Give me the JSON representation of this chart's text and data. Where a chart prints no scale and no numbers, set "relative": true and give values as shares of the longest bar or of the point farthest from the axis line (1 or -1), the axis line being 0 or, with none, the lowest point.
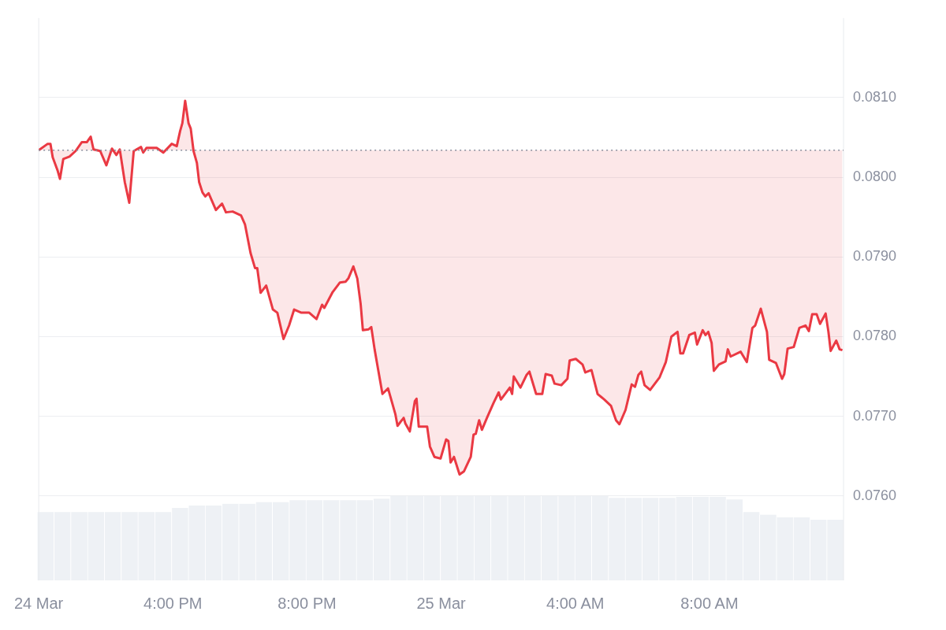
{
  "chart_data": [
    {
      "type": "line",
      "xlim": [
        "--03-24T12:00",
        "--03-25T12:00"
      ],
      "xticks": [
        {
          "value": "--03-24T12:00",
          "label": "24 Mar"
        },
        {
          "value": "--03-24T16:00",
          "label": "4:00 PM"
        },
        {
          "value": "--03-24T20:00",
          "label": "8:00 PM"
        },
        {
          "value": "--03-25T00:00",
          "label": "25 Mar"
        },
        {
          "value": "--03-25T04:00",
          "label": "4:00 AM"
        },
        {
          "value": "--03-25T08:00",
          "label": "8:00 AM"
        }
      ],
      "ylim": [
        0.07494,
        0.082
      ],
      "yticks": [
        {
          "value": 0.076,
          "label": "0.0760"
        },
        {
          "value": 0.077,
          "label": "0.0770"
        },
        {
          "value": 0.078,
          "label": "0.0780"
        },
        {
          "value": 0.079,
          "label": "0.0790"
        },
        {
          "value": 0.08,
          "label": "0.0800"
        },
        {
          "value": 0.081,
          "label": "0.0810"
        }
      ],
      "grid": "y",
      "legend": false,
      "marker": "none",
      "line_style": "solid",
      "ref_lines": [
        {
          "axis": "y",
          "value": 0.08034,
          "color": "#8a8f9e",
          "line_style": "dotted"
        }
      ],
      "series": [
        {
          "color": "#ea3943",
          "x": [
            "--03-24T12:00",
            "--03-24T12:16",
            "--03-24T12:21",
            "--03-24T12:25",
            "--03-24T12:34",
            "--03-24T12:38",
            "--03-24T12:44",
            "--03-24T12:55",
            "--03-24T13:06",
            "--03-24T13:17",
            "--03-24T13:26",
            "--03-24T13:33",
            "--03-24T13:38",
            "--03-24T13:50",
            "--03-24T14:01",
            "--03-24T14:11",
            "--03-24T14:19",
            "--03-24T14:25",
            "--03-24T14:34",
            "--03-24T14:42",
            "--03-24T14:50",
            "--03-24T15:03",
            "--03-24T15:07",
            "--03-24T15:13",
            "--03-24T15:31",
            "--03-24T15:43",
            "--03-24T15:58",
            "--03-24T16:07",
            "--03-24T16:13",
            "--03-24T16:17",
            "--03-24T16:22",
            "--03-24T16:28",
            "--03-24T16:32",
            "--03-24T16:37",
            "--03-24T16:43",
            "--03-24T16:47",
            "--03-24T16:53",
            "--03-24T16:58",
            "--03-24T17:04",
            "--03-24T17:17",
            "--03-24T17:28",
            "--03-24T17:35",
            "--03-24T17:47",
            "--03-24T18:02",
            "--03-24T18:09",
            "--03-24T18:19",
            "--03-24T18:27",
            "--03-24T18:31",
            "--03-24T18:37",
            "--03-24T18:47",
            "--03-24T18:59",
            "--03-24T19:07",
            "--03-24T19:14",
            "--03-24T19:18",
            "--03-24T19:28",
            "--03-24T19:37",
            "--03-24T19:50",
            "--03-24T20:04",
            "--03-24T20:17",
            "--03-24T20:27",
            "--03-24T20:31",
            "--03-24T20:46",
            "--03-24T20:59",
            "--03-24T21:09",
            "--03-24T21:14",
            "--03-24T21:23",
            "--03-24T21:30",
            "--03-24T21:36",
            "--03-24T21:40",
            "--03-24T21:50",
            "--03-24T21:55",
            "--03-24T22:01",
            "--03-24T22:07",
            "--03-24T22:15",
            "--03-24T22:25",
            "--03-24T22:38",
            "--03-24T22:42",
            "--03-24T22:53",
            "--03-24T22:56",
            "--03-24T23:04",
            "--03-24T23:13",
            "--03-24T23:16",
            "--03-24T23:20",
            "--03-24T23:35",
            "--03-24T23:40",
            "--03-24T23:48",
            "--03-24T23:59",
            "--03-25T00:09",
            "--03-25T00:13",
            "--03-25T00:17",
            "--03-25T00:23",
            "--03-25T00:33",
            "--03-25T00:41",
            "--03-25T00:53",
            "--03-25T00:58",
            "--03-25T01:02",
            "--03-25T01:08",
            "--03-25T01:13",
            "--03-25T01:22",
            "--03-25T01:34",
            "--03-25T01:43",
            "--03-25T01:47",
            "--03-25T02:03",
            "--03-25T02:07",
            "--03-25T02:10",
            "--03-25T02:22",
            "--03-25T02:33",
            "--03-25T02:38",
            "--03-25T02:50",
            "--03-25T03:01",
            "--03-25T03:07",
            "--03-25T03:18",
            "--03-25T03:23",
            "--03-25T03:35",
            "--03-25T03:46",
            "--03-25T03:50",
            "--03-25T04:01",
            "--03-25T04:13",
            "--03-25T04:18",
            "--03-25T04:29",
            "--03-25T04:40",
            "--03-25T04:52",
            "--03-25T05:04",
            "--03-25T05:13",
            "--03-25T05:19",
            "--03-25T05:30",
            "--03-25T05:41",
            "--03-25T05:47",
            "--03-25T05:53",
            "--03-25T05:58",
            "--03-25T06:04",
            "--03-25T06:14",
            "--03-25T06:31",
            "--03-25T06:42",
            "--03-25T06:52",
            "--03-25T07:03",
            "--03-25T07:08",
            "--03-25T07:13",
            "--03-25T07:24",
            "--03-25T07:34",
            "--03-25T07:38",
            "--03-25T07:48",
            "--03-25T07:53",
            "--03-25T07:58",
            "--03-25T08:04",
            "--03-25T08:08",
            "--03-25T08:17",
            "--03-25T08:29",
            "--03-25T08:33",
            "--03-25T08:38",
            "--03-25T08:56",
            "--03-25T09:07",
            "--03-25T09:17",
            "--03-25T09:22",
            "--03-25T09:32",
            "--03-25T09:43",
            "--03-25T09:47",
            "--03-25T09:59",
            "--03-25T10:10",
            "--03-25T10:14",
            "--03-25T10:20",
            "--03-25T10:31",
            "--03-25T10:41",
            "--03-25T10:52",
            "--03-25T10:58",
            "--03-25T11:04",
            "--03-25T11:12",
            "--03-25T11:18",
            "--03-25T11:28",
            "--03-25T11:33",
            "--03-25T11:37",
            "--03-25T11:47",
            "--03-25T11:53",
            "--03-25T11:58"
          ],
          "values": [
            0.08034,
            0.08042,
            0.08042,
            0.08025,
            0.08008,
            0.07998,
            0.08023,
            0.08026,
            0.08033,
            0.08044,
            0.08044,
            0.08051,
            0.08035,
            0.08033,
            0.08015,
            0.08036,
            0.08028,
            0.08035,
            0.07994,
            0.07968,
            0.08033,
            0.08038,
            0.08031,
            0.08037,
            0.08037,
            0.08031,
            0.08042,
            0.08039,
            0.08058,
            0.08068,
            0.08096,
            0.08068,
            0.08061,
            0.08033,
            0.08018,
            0.07994,
            0.07981,
            0.07976,
            0.0798,
            0.07959,
            0.07967,
            0.07956,
            0.07957,
            0.07952,
            0.07941,
            0.07905,
            0.07886,
            0.07886,
            0.07855,
            0.07864,
            0.07834,
            0.0783,
            0.07809,
            0.07797,
            0.07814,
            0.07834,
            0.0783,
            0.0783,
            0.07822,
            0.0784,
            0.07836,
            0.07856,
            0.07868,
            0.07869,
            0.07873,
            0.07888,
            0.07873,
            0.07841,
            0.07808,
            0.07809,
            0.07812,
            0.07784,
            0.0776,
            0.07728,
            0.07735,
            0.07703,
            0.07688,
            0.07698,
            0.07691,
            0.07681,
            0.07719,
            0.07722,
            0.07687,
            0.07687,
            0.07662,
            0.07649,
            0.07647,
            0.07671,
            0.07669,
            0.07642,
            0.07649,
            0.07627,
            0.07631,
            0.07649,
            0.07677,
            0.07678,
            0.07695,
            0.07683,
            0.07698,
            0.07717,
            0.0773,
            0.07721,
            0.07736,
            0.07728,
            0.0775,
            0.07736,
            0.07752,
            0.07756,
            0.07728,
            0.07728,
            0.07753,
            0.07751,
            0.07741,
            0.07739,
            0.07747,
            0.0777,
            0.07772,
            0.07765,
            0.07755,
            0.07758,
            0.07728,
            0.07721,
            0.07713,
            0.07695,
            0.0769,
            0.07708,
            0.0774,
            0.07737,
            0.07752,
            0.07756,
            0.07739,
            0.07733,
            0.07749,
            0.07768,
            0.078,
            0.07806,
            0.07779,
            0.07779,
            0.07802,
            0.07805,
            0.0779,
            0.07808,
            0.07802,
            0.07806,
            0.07792,
            0.07757,
            0.07765,
            0.07769,
            0.07784,
            0.07775,
            0.07781,
            0.07768,
            0.07811,
            0.07814,
            0.07835,
            0.07806,
            0.07771,
            0.07767,
            0.07747,
            0.07753,
            0.07785,
            0.07787,
            0.07811,
            0.07814,
            0.07807,
            0.07828,
            0.07828,
            0.07816,
            0.07829,
            0.07806,
            0.07782,
            0.07795,
            0.07784,
            0.07783
          ]
        }
      ]
    },
    {
      "type": "bar",
      "relative": true,
      "color": "#eef1f5",
      "categories": [
        null,
        null,
        null,
        null,
        null,
        null,
        null,
        null,
        null,
        null,
        null,
        null,
        null,
        null,
        null,
        null,
        null,
        null,
        null,
        null,
        null,
        null,
        null,
        null,
        null,
        null,
        null,
        null,
        null,
        null,
        null,
        null,
        null,
        null,
        null,
        null,
        null,
        null,
        null,
        null,
        null,
        null,
        null,
        null,
        null,
        null,
        null,
        null
      ],
      "values": [
        0.81,
        0.81,
        0.81,
        0.81,
        0.81,
        0.81,
        0.81,
        0.81,
        0.86,
        0.89,
        0.89,
        0.91,
        0.91,
        0.93,
        0.93,
        0.95,
        0.95,
        0.95,
        0.95,
        0.95,
        0.97,
        1,
        1,
        1,
        1,
        1,
        1,
        1,
        1,
        1,
        1,
        1,
        1,
        1,
        0.98,
        0.98,
        0.98,
        0.98,
        0.99,
        0.99,
        0.99,
        0.96,
        0.81,
        0.78,
        0.75,
        0.75,
        0.72,
        0.72
      ]
    }
  ]
}
